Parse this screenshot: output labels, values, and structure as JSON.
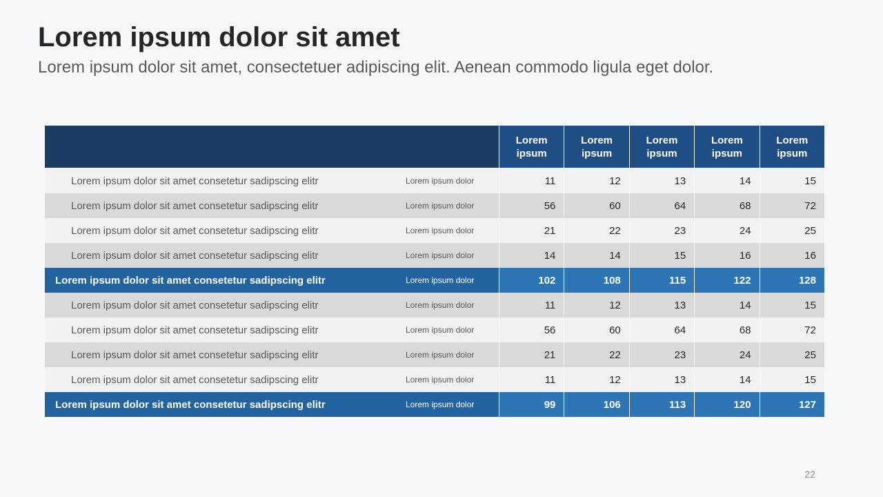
{
  "header": {
    "title": "Lorem ipsum dolor sit amet",
    "subtitle": "Lorem ipsum dolor sit amet, consectetuer adipiscing elit. Aenean commodo ligula eget dolor."
  },
  "table": {
    "columns": [
      "Lorem ipsum",
      "Lorem ipsum",
      "Lorem ipsum",
      "Lorem ipsum",
      "Lorem ipsum"
    ],
    "rows": [
      {
        "label": "Lorem ipsum dolor sit amet consetetur sadipscing elitr",
        "sublabel": "Lorem ipsum dolor",
        "values": [
          11,
          12,
          13,
          14,
          15
        ],
        "bold": false
      },
      {
        "label": "Lorem ipsum dolor sit amet consetetur sadipscing elitr",
        "sublabel": "Lorem ipsum dolor",
        "values": [
          56,
          60,
          64,
          68,
          72
        ],
        "bold": false
      },
      {
        "label": "Lorem ipsum dolor sit amet consetetur sadipscing elitr",
        "sublabel": "Lorem ipsum dolor",
        "values": [
          21,
          22,
          23,
          24,
          25
        ],
        "bold": false
      },
      {
        "label": "Lorem ipsum dolor sit amet consetetur sadipscing elitr",
        "sublabel": "Lorem ipsum dolor",
        "values": [
          14,
          14,
          15,
          16,
          16
        ],
        "bold": false
      },
      {
        "label": "Lorem ipsum dolor sit amet consetetur sadipscing elitr",
        "sublabel": "Lorem ipsum dolor",
        "values": [
          102,
          108,
          115,
          122,
          128
        ],
        "bold": true
      },
      {
        "label": "Lorem ipsum dolor sit amet consetetur sadipscing elitr",
        "sublabel": "Lorem ipsum dolor",
        "values": [
          11,
          12,
          13,
          14,
          15
        ],
        "bold": false
      },
      {
        "label": "Lorem ipsum dolor sit amet consetetur sadipscing elitr",
        "sublabel": "Lorem ipsum dolor",
        "values": [
          56,
          60,
          64,
          68,
          72
        ],
        "bold": false
      },
      {
        "label": "Lorem ipsum dolor sit amet consetetur sadipscing elitr",
        "sublabel": "Lorem ipsum dolor",
        "values": [
          21,
          22,
          23,
          24,
          25
        ],
        "bold": false
      },
      {
        "label": "Lorem ipsum dolor sit amet consetetur sadipscing elitr",
        "sublabel": "Lorem ipsum dolor",
        "values": [
          11,
          12,
          13,
          14,
          15
        ],
        "bold": false
      },
      {
        "label": "Lorem ipsum dolor sit amet consetetur sadipscing elitr",
        "sublabel": "Lorem ipsum dolor",
        "values": [
          99,
          106,
          113,
          120,
          127
        ],
        "bold": true
      }
    ]
  },
  "page_number": "22"
}
